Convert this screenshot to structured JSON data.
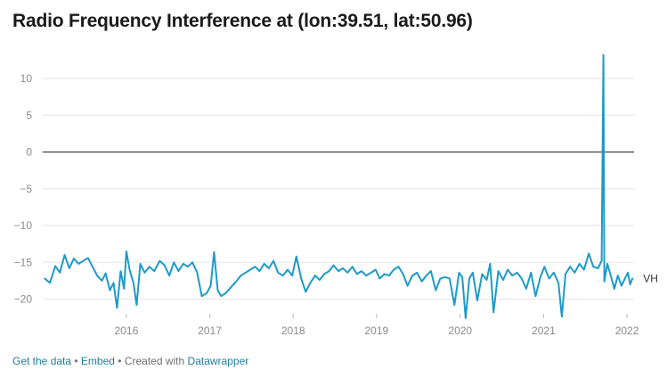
{
  "title": "Radio Frequency Interference at (lon:39.51, lat:50.96)",
  "footer": {
    "get_data": "Get the data",
    "sep1": " • ",
    "embed": "Embed",
    "created_with": " • Created with ",
    "datawrapper": "Datawrapper"
  },
  "colors": {
    "line": "#1d9ac9",
    "grid": "#e5e5e5",
    "zero": "#222222"
  },
  "chart_data": {
    "type": "line",
    "title": "Radio Frequency Interference at (lon:39.51, lat:50.96)",
    "xlabel": "",
    "ylabel": "",
    "xlim": [
      "2015-03-01",
      "2022-04-01"
    ],
    "ylim": [
      -22,
      14
    ],
    "yticks": [
      10,
      5,
      0,
      -5,
      -10,
      -15,
      -20
    ],
    "ytick_labels": [
      "10",
      "5",
      "0",
      "−5",
      "−10",
      "−15",
      "−20"
    ],
    "xticks": [
      {
        "date": "2016-03-01",
        "label": "2016"
      },
      {
        "date": "2017-03-01",
        "label": "2017"
      },
      {
        "date": "2018-03-01",
        "label": "2018"
      },
      {
        "date": "2019-03-01",
        "label": "2019"
      },
      {
        "date": "2020-03-01",
        "label": "2020"
      },
      {
        "date": "2021-03-01",
        "label": "2021"
      },
      {
        "date": "2022-03-01",
        "label": "2022"
      }
    ],
    "grid": true,
    "zero_line": true,
    "series": [
      {
        "name": "VH",
        "points": [
          [
            "2015-03-10",
            -17.2
          ],
          [
            "2015-04-01",
            -17.8
          ],
          [
            "2015-04-25",
            -15.5
          ],
          [
            "2015-05-15",
            -16.4
          ],
          [
            "2015-06-05",
            -14.0
          ],
          [
            "2015-06-25",
            -15.8
          ],
          [
            "2015-07-15",
            -14.5
          ],
          [
            "2015-08-05",
            -15.2
          ],
          [
            "2015-08-25",
            -14.8
          ],
          [
            "2015-09-15",
            -14.4
          ],
          [
            "2015-10-05",
            -15.6
          ],
          [
            "2015-10-25",
            -16.8
          ],
          [
            "2015-11-15",
            -17.5
          ],
          [
            "2015-12-01",
            -16.5
          ],
          [
            "2015-12-20",
            -18.8
          ],
          [
            "2016-01-05",
            -17.8
          ],
          [
            "2016-01-20",
            -21.2
          ],
          [
            "2016-02-05",
            -16.2
          ],
          [
            "2016-02-20",
            -18.6
          ],
          [
            "2016-03-01",
            -13.5
          ],
          [
            "2016-03-15",
            -16.0
          ],
          [
            "2016-04-01",
            -17.8
          ],
          [
            "2016-04-15",
            -20.8
          ],
          [
            "2016-05-01",
            -15.2
          ],
          [
            "2016-05-20",
            -16.4
          ],
          [
            "2016-06-10",
            -15.6
          ],
          [
            "2016-07-01",
            -16.2
          ],
          [
            "2016-07-25",
            -14.8
          ],
          [
            "2016-08-15",
            -15.4
          ],
          [
            "2016-09-05",
            -16.8
          ],
          [
            "2016-09-25",
            -15.0
          ],
          [
            "2016-10-15",
            -16.2
          ],
          [
            "2016-11-05",
            -15.2
          ],
          [
            "2016-11-25",
            -15.6
          ],
          [
            "2016-12-15",
            -15.0
          ],
          [
            "2017-01-05",
            -16.4
          ],
          [
            "2017-01-25",
            -19.6
          ],
          [
            "2017-02-15",
            -19.2
          ],
          [
            "2017-03-05",
            -18.2
          ],
          [
            "2017-03-20",
            -13.6
          ],
          [
            "2017-04-05",
            -18.8
          ],
          [
            "2017-04-20",
            -19.6
          ],
          [
            "2017-05-10",
            -19.2
          ],
          [
            "2017-06-01",
            -18.4
          ],
          [
            "2017-06-25",
            -17.6
          ],
          [
            "2017-07-15",
            -16.8
          ],
          [
            "2017-08-05",
            -16.4
          ],
          [
            "2017-08-25",
            -16.0
          ],
          [
            "2017-09-15",
            -15.6
          ],
          [
            "2017-10-05",
            -16.2
          ],
          [
            "2017-10-25",
            -15.2
          ],
          [
            "2017-11-15",
            -15.8
          ],
          [
            "2017-12-05",
            -14.8
          ],
          [
            "2017-12-25",
            -16.4
          ],
          [
            "2018-01-15",
            -16.8
          ],
          [
            "2018-02-05",
            -16.0
          ],
          [
            "2018-02-25",
            -16.8
          ],
          [
            "2018-03-15",
            -14.2
          ],
          [
            "2018-04-05",
            -17.2
          ],
          [
            "2018-04-25",
            -19.0
          ],
          [
            "2018-05-15",
            -17.8
          ],
          [
            "2018-06-05",
            -16.8
          ],
          [
            "2018-06-25",
            -17.4
          ],
          [
            "2018-07-15",
            -16.6
          ],
          [
            "2018-08-05",
            -16.2
          ],
          [
            "2018-08-25",
            -15.4
          ],
          [
            "2018-09-15",
            -16.2
          ],
          [
            "2018-10-05",
            -15.8
          ],
          [
            "2018-10-25",
            -16.4
          ],
          [
            "2018-11-15",
            -15.6
          ],
          [
            "2018-12-05",
            -16.6
          ],
          [
            "2018-12-25",
            -16.2
          ],
          [
            "2019-01-15",
            -16.8
          ],
          [
            "2019-02-05",
            -16.4
          ],
          [
            "2019-02-25",
            -16.0
          ],
          [
            "2019-03-15",
            -17.2
          ],
          [
            "2019-04-05",
            -16.6
          ],
          [
            "2019-04-25",
            -16.8
          ],
          [
            "2019-05-15",
            -16.0
          ],
          [
            "2019-06-05",
            -15.6
          ],
          [
            "2019-06-25",
            -16.6
          ],
          [
            "2019-07-15",
            -18.2
          ],
          [
            "2019-08-05",
            -16.8
          ],
          [
            "2019-08-25",
            -16.4
          ],
          [
            "2019-09-15",
            -17.6
          ],
          [
            "2019-10-05",
            -16.8
          ],
          [
            "2019-10-25",
            -16.2
          ],
          [
            "2019-11-15",
            -18.8
          ],
          [
            "2019-12-05",
            -17.2
          ],
          [
            "2019-12-25",
            -17.0
          ],
          [
            "2020-01-15",
            -17.2
          ],
          [
            "2020-02-05",
            -20.8
          ],
          [
            "2020-02-25",
            -16.4
          ],
          [
            "2020-03-10",
            -17.0
          ],
          [
            "2020-03-25",
            -22.6
          ],
          [
            "2020-04-10",
            -17.2
          ],
          [
            "2020-04-25",
            -16.4
          ],
          [
            "2020-05-15",
            -20.2
          ],
          [
            "2020-06-05",
            -16.6
          ],
          [
            "2020-06-25",
            -17.4
          ],
          [
            "2020-07-10",
            -15.2
          ],
          [
            "2020-07-25",
            -21.8
          ],
          [
            "2020-08-15",
            -16.2
          ],
          [
            "2020-09-05",
            -17.4
          ],
          [
            "2020-09-25",
            -16.0
          ],
          [
            "2020-10-15",
            -16.8
          ],
          [
            "2020-11-05",
            -16.4
          ],
          [
            "2020-11-25",
            -17.2
          ],
          [
            "2020-12-15",
            -18.6
          ],
          [
            "2021-01-05",
            -16.4
          ],
          [
            "2021-01-25",
            -19.6
          ],
          [
            "2021-02-15",
            -17.0
          ],
          [
            "2021-03-05",
            -15.6
          ],
          [
            "2021-03-25",
            -17.2
          ],
          [
            "2021-04-15",
            -16.4
          ],
          [
            "2021-05-05",
            -17.8
          ],
          [
            "2021-05-20",
            -22.4
          ],
          [
            "2021-06-05",
            -16.6
          ],
          [
            "2021-06-25",
            -15.6
          ],
          [
            "2021-07-15",
            -16.4
          ],
          [
            "2021-08-05",
            -15.2
          ],
          [
            "2021-08-25",
            -16.0
          ],
          [
            "2021-09-15",
            -13.8
          ],
          [
            "2021-10-05",
            -15.6
          ],
          [
            "2021-10-25",
            -15.8
          ],
          [
            "2021-11-10",
            -14.8
          ],
          [
            "2021-11-18",
            13.2
          ],
          [
            "2021-11-22",
            -17.6
          ],
          [
            "2021-12-05",
            -15.2
          ],
          [
            "2021-12-20",
            -16.8
          ],
          [
            "2022-01-05",
            -18.6
          ],
          [
            "2022-01-20",
            -16.8
          ],
          [
            "2022-02-05",
            -18.2
          ],
          [
            "2022-02-20",
            -17.2
          ],
          [
            "2022-03-05",
            -16.4
          ],
          [
            "2022-03-15",
            -18.0
          ],
          [
            "2022-03-25",
            -17.2
          ]
        ]
      }
    ]
  }
}
